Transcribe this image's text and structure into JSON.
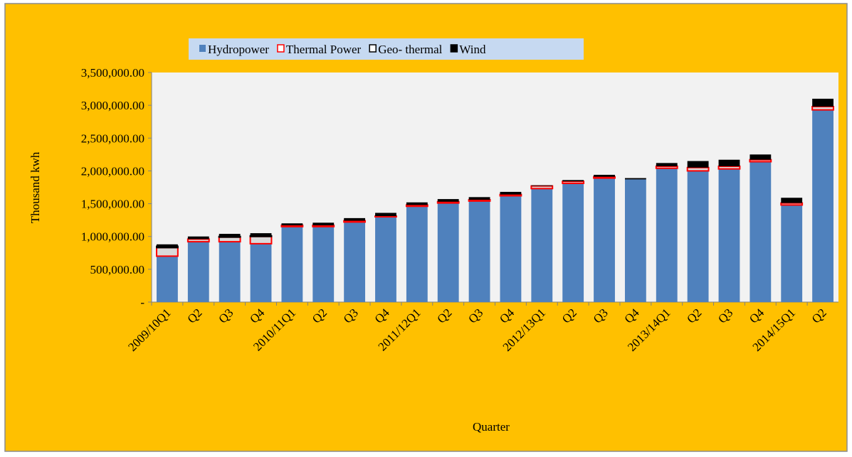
{
  "chart_data": {
    "type": "bar",
    "stacked": true,
    "x_label": "Quarter",
    "y_label": "Thousand kwh",
    "categories": [
      "2009/10Q1",
      "Q2",
      "Q3",
      "Q4",
      "2010/11Q1",
      "Q2",
      "Q3",
      "Q4",
      "2011/12Q1",
      "Q2",
      "Q3",
      "Q4",
      "2012/13Q1",
      "Q2",
      "Q3",
      "Q4",
      "2013/14Q1",
      "Q2",
      "Q3",
      "Q4",
      "2014/15Q1",
      "Q2"
    ],
    "series": [
      {
        "name": "Hydropower",
        "color": "#4f81bd",
        "edgecolor": "#4f81bd",
        "values": [
          700000,
          920000,
          920000,
          890000,
          1150000,
          1150000,
          1220000,
          1300000,
          1460000,
          1510000,
          1540000,
          1620000,
          1730000,
          1810000,
          1890000,
          1870000,
          2040000,
          2000000,
          2030000,
          2140000,
          1480000,
          2930000
        ]
      },
      {
        "name": "Thermal Power",
        "color": "#d9d9d9",
        "edgecolor": "#ff0000",
        "values": [
          130000,
          40000,
          70000,
          110000,
          20000,
          20000,
          20000,
          10000,
          20000,
          20000,
          20000,
          20000,
          40000,
          30000,
          20000,
          0,
          30000,
          50000,
          40000,
          30000,
          30000,
          50000
        ]
      },
      {
        "name": "Geo- thermal",
        "color": "#d9d9d9",
        "edgecolor": "#000000",
        "values": [
          20000,
          0,
          10000,
          10000,
          0,
          0,
          0,
          0,
          0,
          0,
          0,
          0,
          0,
          0,
          0,
          0,
          0,
          0,
          0,
          0,
          0,
          0
        ]
      },
      {
        "name": "Wind",
        "color": "#000000",
        "edgecolor": "#000000",
        "values": [
          30000,
          40000,
          40000,
          40000,
          30000,
          40000,
          40000,
          50000,
          40000,
          40000,
          40000,
          40000,
          10000,
          20000,
          30000,
          20000,
          50000,
          100000,
          100000,
          80000,
          80000,
          120000
        ]
      }
    ],
    "ylim": [
      0,
      3500000
    ],
    "yticks": [
      {
        "value": 0,
        "label": "-"
      },
      {
        "value": 500000,
        "label": "500,000.00"
      },
      {
        "value": 1000000,
        "label": "1,000,000.00"
      },
      {
        "value": 1500000,
        "label": "1,500,000.00"
      },
      {
        "value": 2000000,
        "label": "2,000,000.00"
      },
      {
        "value": 2500000,
        "label": "2,500,000.00"
      },
      {
        "value": 3000000,
        "label": "3,000,000.00"
      },
      {
        "value": 3500000,
        "label": "3,500,000.00"
      }
    ],
    "grid": false,
    "legend": "top"
  }
}
